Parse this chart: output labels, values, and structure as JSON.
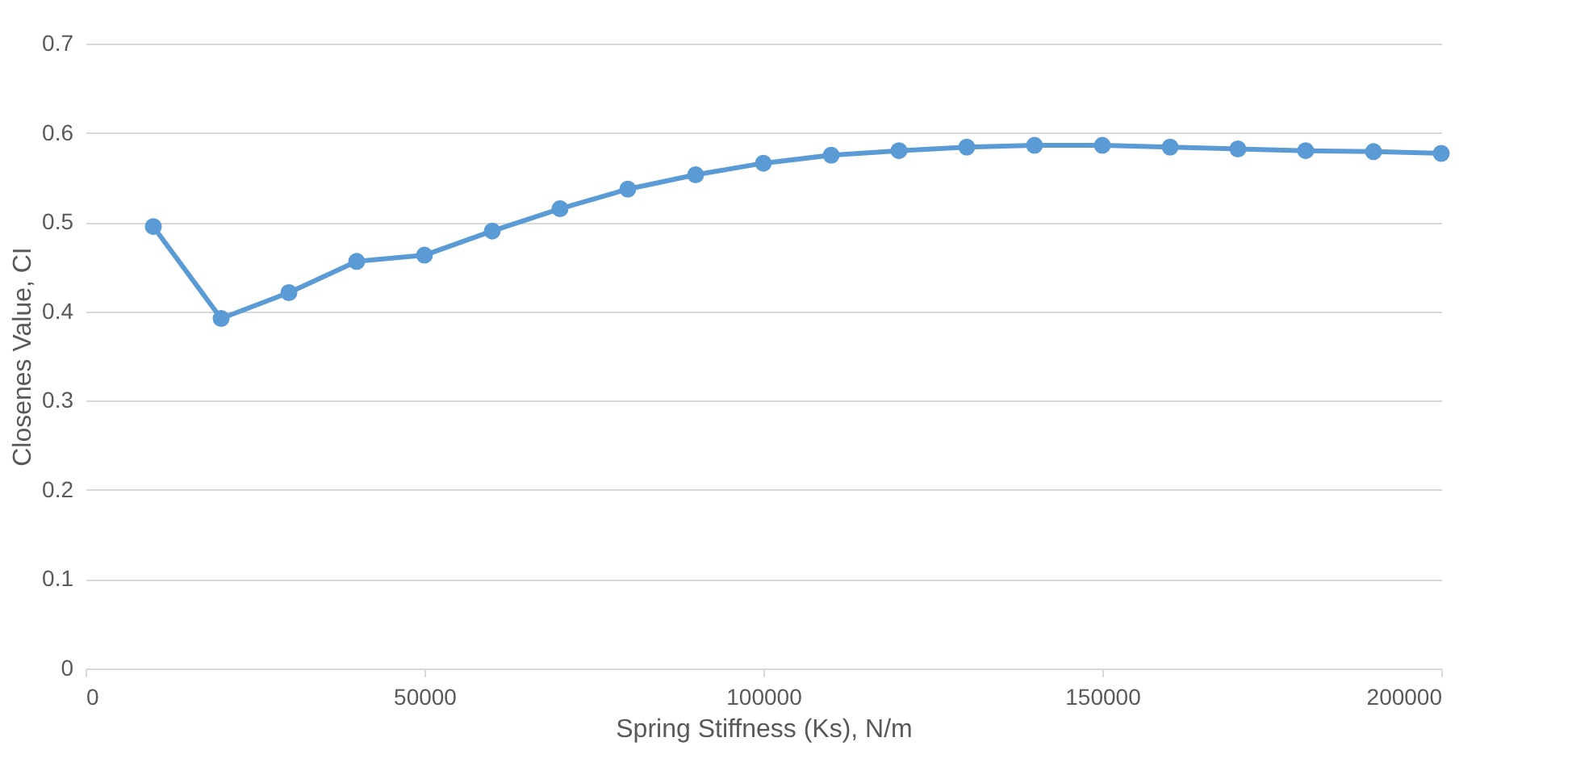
{
  "chart_data": {
    "type": "line",
    "xlabel": "Spring Stiffness (Ks), N/m",
    "ylabel": "Closenes Value, CI",
    "x": [
      10000,
      20000,
      30000,
      40000,
      50000,
      60000,
      70000,
      80000,
      90000,
      100000,
      110000,
      120000,
      130000,
      140000,
      150000,
      160000,
      170000,
      180000,
      190000,
      200000
    ],
    "series": [
      {
        "color": "#5b9bd5",
        "values": [
          0.495,
          0.392,
          0.421,
          0.456,
          0.463,
          0.49,
          0.515,
          0.537,
          0.553,
          0.566,
          0.575,
          0.58,
          0.584,
          0.586,
          0.586,
          0.584,
          0.582,
          0.58,
          0.579,
          0.577
        ]
      }
    ],
    "xlim": [
      0,
      200000
    ],
    "xticks": [
      0,
      50000,
      100000,
      150000,
      200000
    ],
    "ylim": [
      0,
      0.7
    ],
    "yticks": [
      0,
      0.1,
      0.2,
      0.3,
      0.4,
      0.5,
      0.6,
      0.7
    ],
    "grid": "y",
    "marker": "circle",
    "line_style": "solid"
  }
}
